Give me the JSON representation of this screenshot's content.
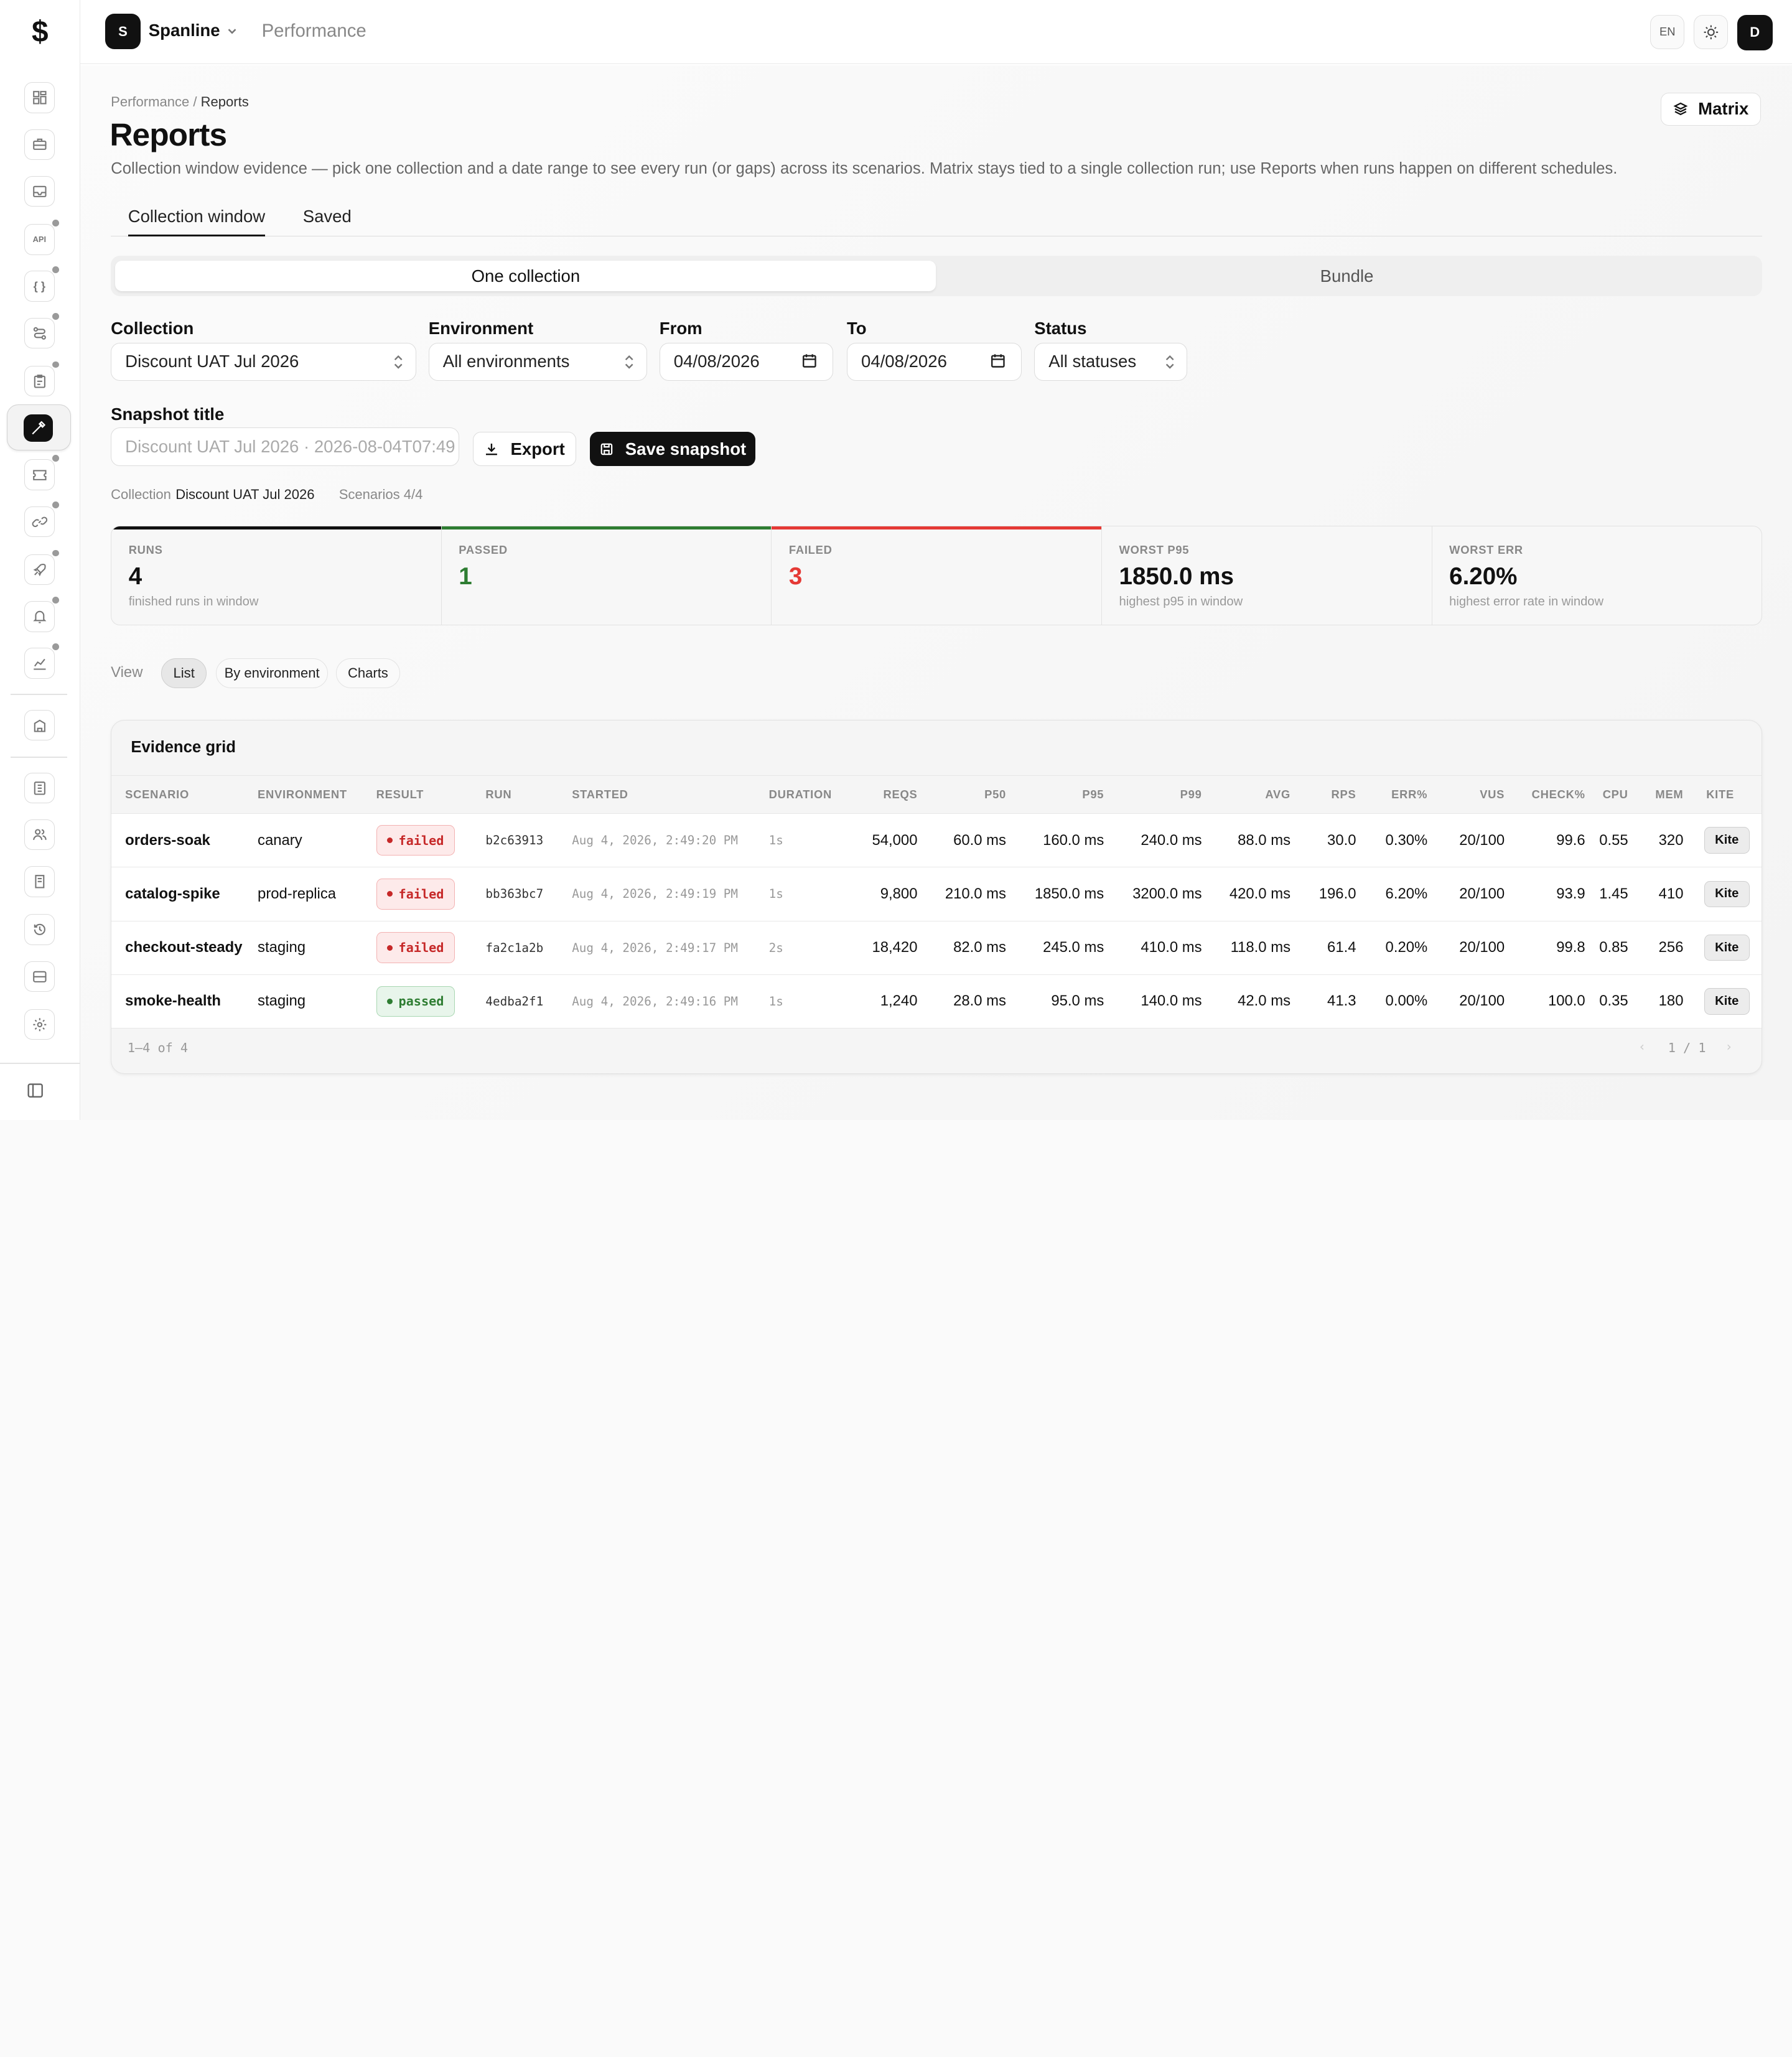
{
  "app": {
    "logo": "$",
    "workspace_initial": "S",
    "workspace": "Spanline",
    "section": "Performance",
    "lang": "EN",
    "user_initial": "D"
  },
  "sidebar": {
    "items": [
      {
        "icon": "dashboard-icon",
        "dot": false
      },
      {
        "icon": "briefcase-icon",
        "dot": false
      },
      {
        "icon": "inbox-icon",
        "dot": false
      },
      {
        "icon": "api-icon",
        "text": "API",
        "dot": true
      },
      {
        "icon": "braces-icon",
        "text": "{ }",
        "dot": true
      },
      {
        "icon": "flow-icon",
        "dot": true
      },
      {
        "icon": "clipboard-icon",
        "dot": true
      },
      {
        "icon": "report-icon",
        "active": true
      },
      {
        "icon": "ticket-icon",
        "dot": true
      },
      {
        "icon": "link-icon",
        "dot": true
      },
      {
        "icon": "rocket-icon",
        "dot": true
      },
      {
        "icon": "bell-icon",
        "dot": true
      },
      {
        "icon": "chart-icon",
        "dot": true
      },
      {
        "icon": "building-icon",
        "dot": false
      },
      {
        "icon": "document-icon",
        "dot": false
      },
      {
        "icon": "users-icon",
        "dot": false
      },
      {
        "icon": "notes-icon",
        "dot": false
      },
      {
        "icon": "history-icon",
        "dot": false
      },
      {
        "icon": "storage-icon",
        "dot": false
      },
      {
        "icon": "settings-icon",
        "dot": false
      }
    ]
  },
  "page": {
    "breadcrumb_root": "Performance",
    "breadcrumb_sep": " / ",
    "breadcrumb_current": "Reports",
    "title": "Reports",
    "description": "Collection window evidence — pick one collection and a date range to see every run (or gaps) across its scenarios. Matrix stays tied to a single collection run; use Reports when runs happen on different schedules.",
    "matrix_label": "Matrix",
    "tabs": [
      "Collection window",
      "Saved"
    ],
    "segments": [
      "One collection",
      "Bundle"
    ]
  },
  "filters": {
    "collection_label": "Collection",
    "collection_value": "Discount UAT Jul 2026",
    "environment_label": "Environment",
    "environment_value": "All environments",
    "from_label": "From",
    "from_value": "04/08/2026",
    "to_label": "To",
    "to_value": "04/08/2026",
    "status_label": "Status",
    "status_value": "All statuses"
  },
  "snapshot": {
    "title_label": "Snapshot title",
    "placeholder": "Discount UAT Jul 2026 · 2026-08-04T07:49",
    "export_label": "Export",
    "save_label": "Save snapshot"
  },
  "meta": {
    "collection_label": "Collection",
    "collection_value": "Discount UAT Jul 2026",
    "scenarios_label": "Scenarios",
    "scenarios_value": "4/4"
  },
  "stats": [
    {
      "key": "RUNS",
      "value": "4",
      "sub": "finished runs in window",
      "accent": "#111111",
      "value_color": "#111111"
    },
    {
      "key": "PASSED",
      "value": "1",
      "sub": "",
      "accent": "#2e7d32",
      "value_color": "#2e7d32"
    },
    {
      "key": "FAILED",
      "value": "3",
      "sub": "",
      "accent": "#e53935",
      "value_color": "#e53935"
    },
    {
      "key": "WORST P95",
      "value": "1850.0 ms",
      "sub": "highest p95 in window",
      "accent": "",
      "value_color": "#111111"
    },
    {
      "key": "WORST ERR",
      "value": "6.20%",
      "sub": "highest error rate in window",
      "accent": "",
      "value_color": "#111111"
    }
  ],
  "view": {
    "label": "View",
    "options": [
      "List",
      "By environment",
      "Charts"
    ]
  },
  "grid": {
    "title": "Evidence grid",
    "columns": [
      "SCENARIO",
      "ENVIRONMENT",
      "RESULT",
      "RUN",
      "STARTED",
      "DURATION",
      "REQS",
      "P50",
      "P95",
      "P99",
      "AVG",
      "RPS",
      "ERR%",
      "VUS",
      "CHECK%",
      "CPU",
      "MEM",
      "KITE"
    ],
    "rows": [
      {
        "scenario": "orders-soak",
        "env": "canary",
        "result": "failed",
        "run": "b2c63913",
        "started": "Aug 4, 2026, 2:49:20 PM",
        "duration": "1s",
        "reqs": "54,000",
        "p50": "60.0 ms",
        "p95": "160.0 ms",
        "p99": "240.0 ms",
        "avg": "88.0 ms",
        "rps": "30.0",
        "err": "0.30%",
        "vus": "20/100",
        "check": "99.6",
        "cpu": "0.55",
        "mem": "320",
        "kite": "Kite"
      },
      {
        "scenario": "catalog-spike",
        "env": "prod-replica",
        "result": "failed",
        "run": "bb363bc7",
        "started": "Aug 4, 2026, 2:49:19 PM",
        "duration": "1s",
        "reqs": "9,800",
        "p50": "210.0 ms",
        "p95": "1850.0 ms",
        "p99": "3200.0 ms",
        "avg": "420.0 ms",
        "rps": "196.0",
        "err": "6.20%",
        "vus": "20/100",
        "check": "93.9",
        "cpu": "1.45",
        "mem": "410",
        "kite": "Kite"
      },
      {
        "scenario": "checkout-steady",
        "env": "staging",
        "result": "failed",
        "run": "fa2c1a2b",
        "started": "Aug 4, 2026, 2:49:17 PM",
        "duration": "2s",
        "reqs": "18,420",
        "p50": "82.0 ms",
        "p95": "245.0 ms",
        "p99": "410.0 ms",
        "avg": "118.0 ms",
        "rps": "61.4",
        "err": "0.20%",
        "vus": "20/100",
        "check": "99.8",
        "cpu": "0.85",
        "mem": "256",
        "kite": "Kite"
      },
      {
        "scenario": "smoke-health",
        "env": "staging",
        "result": "passed",
        "run": "4edba2f1",
        "started": "Aug 4, 2026, 2:49:16 PM",
        "duration": "1s",
        "reqs": "1,240",
        "p50": "28.0 ms",
        "p95": "95.0 ms",
        "p99": "140.0 ms",
        "avg": "42.0 ms",
        "rps": "41.3",
        "err": "0.00%",
        "vus": "20/100",
        "check": "100.0",
        "cpu": "0.35",
        "mem": "180",
        "kite": "Kite"
      }
    ],
    "footer_count": "1–4 of 4",
    "footer_page": "1 / 1"
  }
}
